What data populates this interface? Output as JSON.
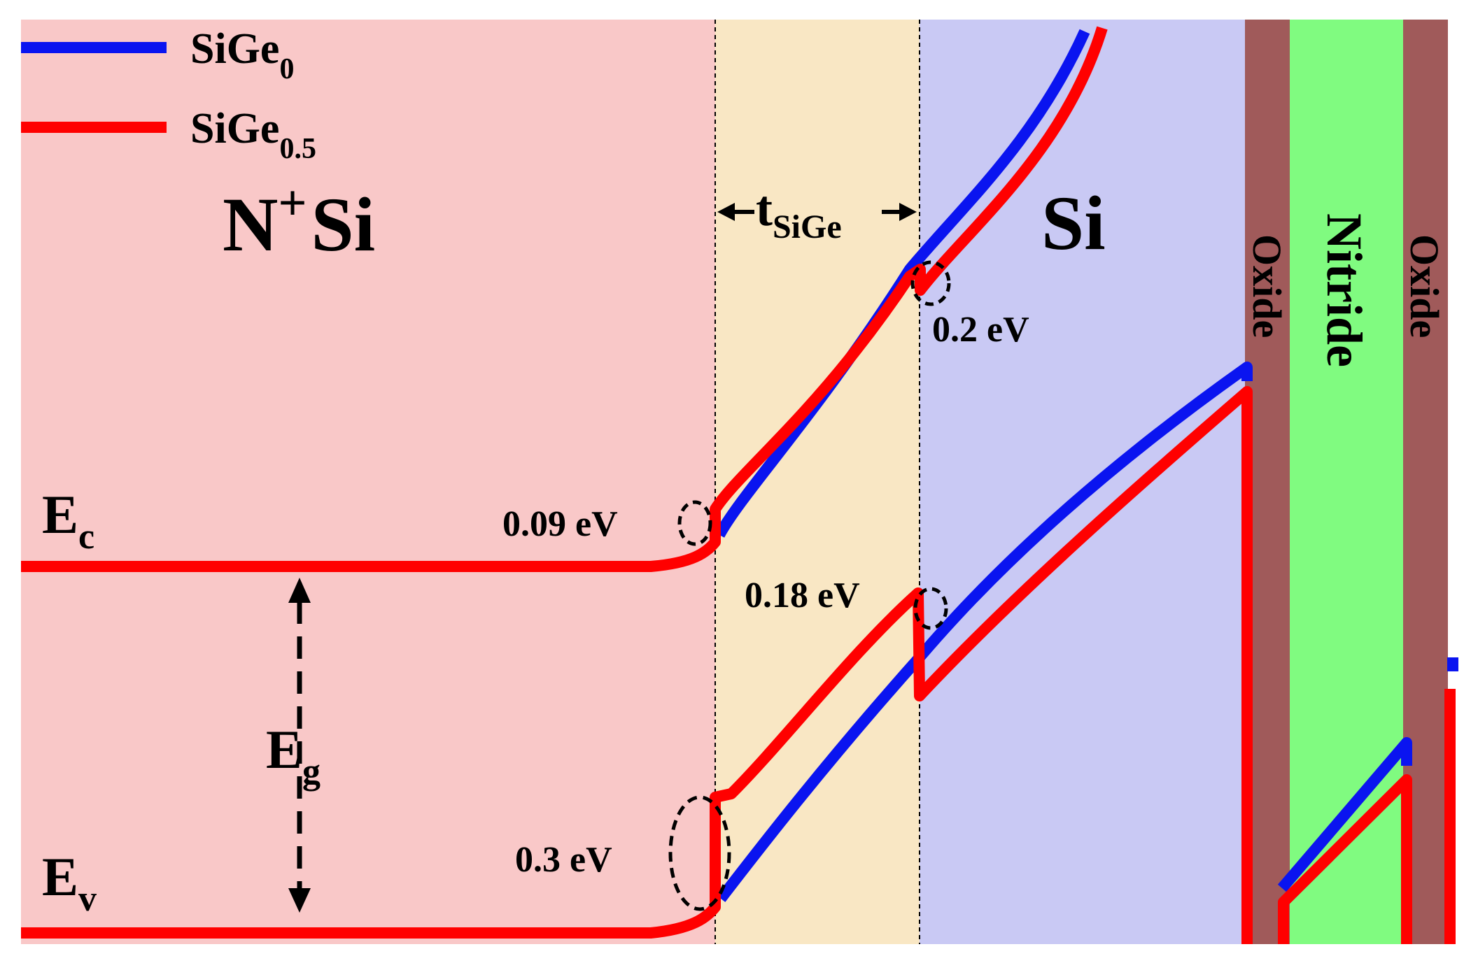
{
  "colors": {
    "n_si_region": "#f9c8c8",
    "sige_region": "#f9e7c4",
    "si_region": "#c9c9f4",
    "oxide": "#a05a5a",
    "nitride": "#80fb80",
    "sige0": "#0a14f0",
    "sige05": "#ff0000"
  },
  "legend": {
    "items": [
      {
        "base": "SiGe",
        "sub": "0",
        "color": "#0a14f0"
      },
      {
        "base": "SiGe",
        "sub": "0.5",
        "color": "#ff0000"
      }
    ]
  },
  "regions": {
    "n_si": {
      "base": "N",
      "sup": "+",
      "rest": "Si"
    },
    "sige_width": {
      "base": "t",
      "sub": "SiGe"
    },
    "si": "Si",
    "oxide_left": "Oxide",
    "nitride": "Nitride",
    "oxide_right": "Oxide"
  },
  "bands": {
    "ec": {
      "base": "E",
      "sub": "c"
    },
    "ev": {
      "base": "E",
      "sub": "v"
    },
    "eg": {
      "base": "E",
      "sub": "g"
    }
  },
  "annotations": {
    "ec_front_offset": "0.09 eV",
    "ec_back_offset": "0.2 eV",
    "ev_back_offset": "0.18 eV",
    "ev_front_offset": "0.3 eV"
  }
}
